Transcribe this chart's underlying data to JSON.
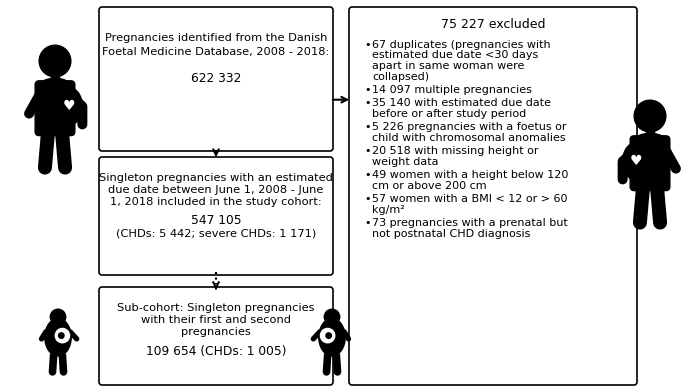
{
  "box1_lines": [
    "Pregnancies identified from the Danish",
    "Foetal Medicine Database, 2008 - 2018:",
    "",
    "622 332"
  ],
  "box2_lines": [
    "Singleton pregnancies with an estimated",
    "due date between June 1, 2008 - June",
    "1, 2018 included in the study cohort:",
    "",
    "547 105",
    "(CHDs: 5 442; severe CHDs: 1 171)"
  ],
  "box3_lines": [
    "Sub-cohort: Singleton pregnancies",
    "with their first and second",
    "pregnancies",
    "",
    "109 654 (CHDs: 1 005)"
  ],
  "box_right_title": "75 227 excluded",
  "box_right_bullets": [
    "67 duplicates (pregnancies with\nestimated due date <30 days\napart in same woman were\ncollapsed)",
    "14 097 multiple pregnancies",
    "35 140 with estimated due date\nbefore or after study period",
    "5 226 pregnancies with a foetus or\nchild with chromosomal anomalies",
    "20 518 with missing height or\nweight data",
    "49 women with a height below 120\ncm or above 200 cm",
    "57 women with a BMI < 12 or > 60\nkg/m²",
    "73 pregnancies with a prenatal but\nnot postnatal CHD diagnosis"
  ],
  "bg_color": "#ffffff",
  "figure_size": [
    6.85,
    3.86
  ],
  "dpi": 100
}
